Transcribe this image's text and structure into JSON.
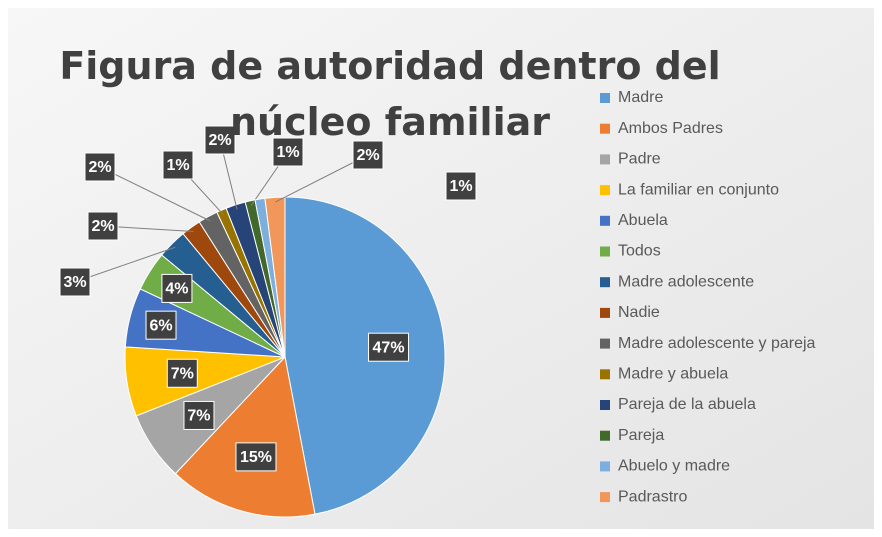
{
  "chart_data": {
    "type": "pie",
    "title": "Figura de autoridad dentro del núcleo familiar",
    "categories": [
      "Madre",
      "Ambos Padres",
      "Padre",
      "La familiar en conjunto",
      "Abuela",
      "Todos",
      "Madre adolescente",
      "Nadie",
      "Madre adolescente y pareja",
      "Madre y abuela",
      "Pareja de la abuela",
      "Pareja",
      "Abuelo y madre",
      "Padrastro"
    ],
    "values": [
      47,
      15,
      7,
      7,
      6,
      4,
      3,
      2,
      2,
      1,
      2,
      1,
      1,
      2
    ],
    "value_labels": [
      "47%",
      "15%",
      "7%",
      "7%",
      "6%",
      "4%",
      "3%",
      "2%",
      "2%",
      "1%",
      "2%",
      "1%",
      "1%",
      "2%"
    ],
    "colors": [
      "#5b9bd5",
      "#ed7d31",
      "#a5a5a5",
      "#ffc000",
      "#4472c4",
      "#70ad47",
      "#255e91",
      "#9e480e",
      "#636363",
      "#997300",
      "#264478",
      "#43682b",
      "#7cafdd",
      "#f1975a"
    ],
    "legend": "right"
  }
}
